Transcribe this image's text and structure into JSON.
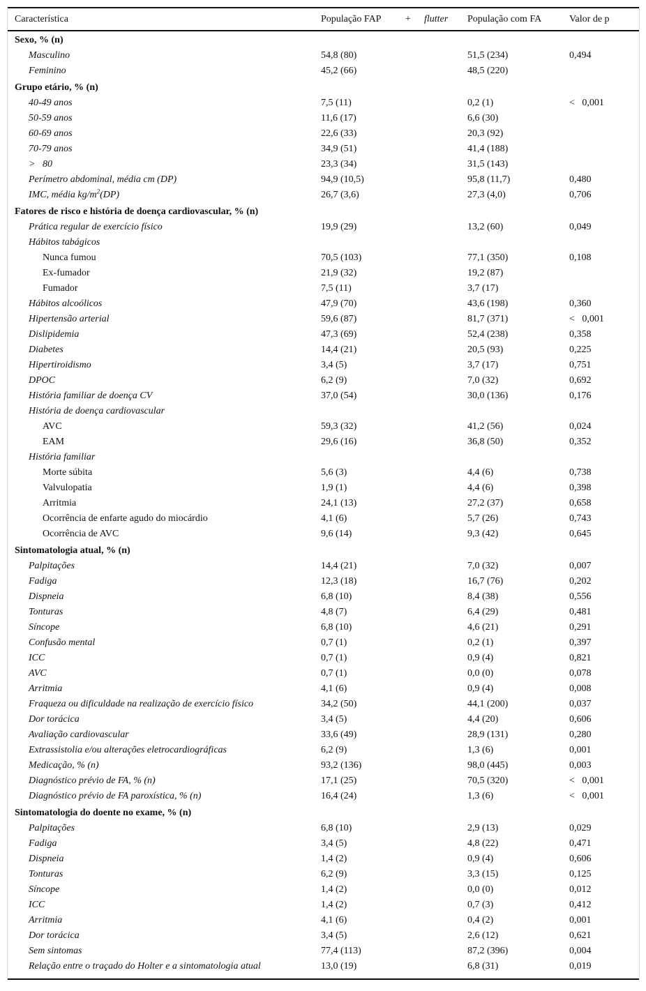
{
  "header": {
    "characteristic": "Característica",
    "fap_population": "População FAP",
    "plus": "+",
    "flutter": "flutter",
    "fa_population": "População com FA",
    "p_value": "Valor de p"
  },
  "rows": [
    {
      "type": "section",
      "label": "Sexo, % (n)"
    },
    {
      "type": "l1",
      "label": "Masculino",
      "fap": "54,8 (80)",
      "fa": "51,5 (234)",
      "p": "0,494"
    },
    {
      "type": "l1",
      "label": "Feminino",
      "fap": "45,2 (66)",
      "fa": "48,5 (220)",
      "p": ""
    },
    {
      "type": "section",
      "label": "Grupo etário, % (n)"
    },
    {
      "type": "l1",
      "label": "40-49 anos",
      "fap": "7,5 (11)",
      "fa": "0,2 (1)",
      "p": "<   0,001"
    },
    {
      "type": "l1",
      "label": "50-59 anos",
      "fap": "11,6 (17)",
      "fa": "6,6 (30)",
      "p": ""
    },
    {
      "type": "l1",
      "label": "60-69 anos",
      "fap": "22,6 (33)",
      "fa": "20,3 (92)",
      "p": ""
    },
    {
      "type": "l1",
      "label": "70-79 anos",
      "fap": "34,9 (51)",
      "fa": "41,4 (188)",
      "p": ""
    },
    {
      "type": "l1",
      "label": ">   80",
      "fap": "23,3 (34)",
      "fa": "31,5 (143)",
      "p": ""
    },
    {
      "type": "l1",
      "label": "Perímetro abdominal, média cm (DP)",
      "fap": "94,9 (10,5)",
      "fa": "95,8 (11,7)",
      "p": "0,480"
    },
    {
      "type": "l1",
      "label": "IMC, média kg/m",
      "sup": "2",
      "label_after": "(DP)",
      "fap": "26,7 (3,6)",
      "fa": "27,3 (4,0)",
      "p": "0,706"
    },
    {
      "type": "section",
      "label": "Fatores de risco e história de doença cardiovascular, % (n)"
    },
    {
      "type": "l1",
      "label": "Prática regular de exercício físico",
      "fap": "19,9 (29)",
      "fa": "13,2 (60)",
      "p": "0,049"
    },
    {
      "type": "l1",
      "label": "Hábitos tabágicos",
      "fap": "",
      "fa": "",
      "p": ""
    },
    {
      "type": "l2",
      "label": "Nunca fumou",
      "fap": "70,5 (103)",
      "fa": "77,1 (350)",
      "p": "0,108"
    },
    {
      "type": "l2",
      "label": "Ex-fumador",
      "fap": "21,9 (32)",
      "fa": "19,2 (87)",
      "p": ""
    },
    {
      "type": "l2",
      "label": "Fumador",
      "fap": "7,5 (11)",
      "fa": "3,7 (17)",
      "p": ""
    },
    {
      "type": "l1",
      "label": "Hábitos alcoólicos",
      "fap": "47,9 (70)",
      "fa": "43,6 (198)",
      "p": "0,360"
    },
    {
      "type": "l1",
      "label": "Hipertensão arterial",
      "fap": "59,6 (87)",
      "fa": "81,7 (371)",
      "p": "<   0,001"
    },
    {
      "type": "l1",
      "label": "Dislipidemia",
      "fap": "47,3 (69)",
      "fa": "52,4 (238)",
      "p": "0,358"
    },
    {
      "type": "l1",
      "label": "Diabetes",
      "fap": "14,4 (21)",
      "fa": "20,5 (93)",
      "p": "0,225"
    },
    {
      "type": "l1",
      "label": "Hipertiroidismo",
      "fap": "3,4 (5)",
      "fa": "3,7 (17)",
      "p": "0,751"
    },
    {
      "type": "l1",
      "label": "DPOC",
      "fap": "6,2 (9)",
      "fa": "7,0 (32)",
      "p": "0,692"
    },
    {
      "type": "l1",
      "label": "História familiar de doença CV",
      "fap": "37,0 (54)",
      "fa": "30,0 (136)",
      "p": "0,176"
    },
    {
      "type": "l1",
      "label": "História de doença cardiovascular",
      "fap": "",
      "fa": "",
      "p": ""
    },
    {
      "type": "l2",
      "label": "AVC",
      "fap": "59,3 (32)",
      "fa": "41,2 (56)",
      "p": "0,024"
    },
    {
      "type": "l2",
      "label": "EAM",
      "fap": "29,6 (16)",
      "fa": "36,8 (50)",
      "p": "0,352"
    },
    {
      "type": "l1",
      "label": "História familiar",
      "fap": "",
      "fa": "",
      "p": ""
    },
    {
      "type": "l2",
      "label": "Morte súbita",
      "fap": "5,6 (3)",
      "fa": "4,4 (6)",
      "p": "0,738"
    },
    {
      "type": "l2",
      "label": "Valvulopatia",
      "fap": "1,9 (1)",
      "fa": "4,4 (6)",
      "p": "0,398"
    },
    {
      "type": "l2",
      "label": "Arritmia",
      "fap": "24,1 (13)",
      "fa": "27,2 (37)",
      "p": "0,658"
    },
    {
      "type": "l2",
      "label": "Ocorrência de enfarte agudo do miocárdio",
      "fap": "4,1 (6)",
      "fa": "5,7 (26)",
      "p": "0,743"
    },
    {
      "type": "l2",
      "label": "Ocorrência de AVC",
      "fap": "9,6 (14)",
      "fa": "9,3 (42)",
      "p": "0,645"
    },
    {
      "type": "section",
      "label": "Sintomatologia atual, % (n)"
    },
    {
      "type": "l1",
      "label": "Palpitações",
      "fap": "14,4 (21)",
      "fa": "7,0 (32)",
      "p": "0,007"
    },
    {
      "type": "l1",
      "label": "Fadiga",
      "fap": "12,3 (18)",
      "fa": "16,7 (76)",
      "p": "0,202"
    },
    {
      "type": "l1",
      "label": "Dispneia",
      "fap": "6,8 (10)",
      "fa": "8,4 (38)",
      "p": "0,556"
    },
    {
      "type": "l1",
      "label": "Tonturas",
      "fap": "4,8 (7)",
      "fa": "6,4 (29)",
      "p": "0,481"
    },
    {
      "type": "l1",
      "label": "Síncope",
      "fap": "6,8 (10)",
      "fa": "4,6 (21)",
      "p": "0,291"
    },
    {
      "type": "l1",
      "label": "Confusão mental",
      "fap": "0,7 (1)",
      "fa": "0,2 (1)",
      "p": "0,397"
    },
    {
      "type": "l1",
      "label": "ICC",
      "fap": "0,7 (1)",
      "fa": "0,9 (4)",
      "p": "0,821"
    },
    {
      "type": "l1",
      "label": "AVC",
      "fap": "0,7 (1)",
      "fa": "0,0 (0)",
      "p": "0,078"
    },
    {
      "type": "l1",
      "label": "Arritmia",
      "fap": "4,1 (6)",
      "fa": "0,9 (4)",
      "p": "0,008"
    },
    {
      "type": "l1",
      "label": "Fraqueza ou dificuldade na realização de exercício físico",
      "fap": "34,2 (50)",
      "fa": "44,1 (200)",
      "p": "0,037"
    },
    {
      "type": "l1",
      "label": "Dor torácica",
      "fap": "3,4 (5)",
      "fa": "4,4 (20)",
      "p": "0,606"
    },
    {
      "type": "l1",
      "label": "Avaliação cardiovascular",
      "fap": "33,6 (49)",
      "fa": "28,9 (131)",
      "p": "0,280"
    },
    {
      "type": "l1",
      "label": "Extrassistolia e/ou alterações eletrocardiográficas",
      "fap": "6,2 (9)",
      "fa": "1,3 (6)",
      "p": "0,001"
    },
    {
      "type": "l1",
      "label": "Medicação, % (n)",
      "fap": "93,2 (136)",
      "fa": "98,0 (445)",
      "p": "0,003"
    },
    {
      "type": "l1",
      "label": "Diagnóstico prévio de FA, % (n)",
      "fap": "17,1 (25)",
      "fa": "70,5 (320)",
      "p": "<   0,001"
    },
    {
      "type": "l1",
      "label": "Diagnóstico prévio de FA paroxística, % (n)",
      "fap": "16,4 (24)",
      "fa": "1,3 (6)",
      "p": "<   0,001"
    },
    {
      "type": "section",
      "label": "Sintomatologia do doente no exame, % (n)"
    },
    {
      "type": "l1",
      "label": "Palpitações",
      "fap": "6,8 (10)",
      "fa": "2,9 (13)",
      "p": "0,029"
    },
    {
      "type": "l1",
      "label": "Fadiga",
      "fap": "3,4 (5)",
      "fa": "4,8 (22)",
      "p": "0,471"
    },
    {
      "type": "l1",
      "label": "Dispneia",
      "fap": "1,4 (2)",
      "fa": "0,9 (4)",
      "p": "0,606"
    },
    {
      "type": "l1",
      "label": "Tonturas",
      "fap": "6,2 (9)",
      "fa": "3,3 (15)",
      "p": "0,125"
    },
    {
      "type": "l1",
      "label": "Síncope",
      "fap": "1,4 (2)",
      "fa": "0,0 (0)",
      "p": "0,012"
    },
    {
      "type": "l1",
      "label": "ICC",
      "fap": "1,4 (2)",
      "fa": "0,7 (3)",
      "p": "0,412"
    },
    {
      "type": "l1",
      "label": "Arritmia",
      "fap": "4,1 (6)",
      "fa": "0,4 (2)",
      "p": "0,001"
    },
    {
      "type": "l1",
      "label": "Dor torácica",
      "fap": "3,4 (5)",
      "fa": "2,6 (12)",
      "p": "0,621"
    },
    {
      "type": "l1",
      "label": "Sem sintomas",
      "fap": "77,4 (113)",
      "fa": "87,2 (396)",
      "p": "0,004"
    },
    {
      "type": "l1",
      "label": "Relação entre o traçado do Holter e a sintomatologia atual",
      "fap": "13,0 (19)",
      "fa": "6,8 (31)",
      "p": "0,019"
    }
  ]
}
